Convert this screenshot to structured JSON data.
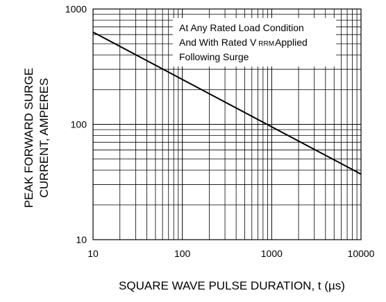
{
  "chart_data": {
    "type": "line",
    "title": "",
    "xlabel": "SQUARE WAVE PULSE DURATION, t (µs)",
    "ylabel": [
      "PEAK FORWARD SURGE",
      "CURRENT, AMPERES"
    ],
    "xscale": "log",
    "yscale": "log",
    "xlim": [
      10,
      10000
    ],
    "ylim": [
      10,
      1000
    ],
    "xticks": [
      "10",
      "100",
      "1000",
      "10000"
    ],
    "yticks": [
      "10",
      "100",
      "1000"
    ],
    "grid": true,
    "series": [
      {
        "x": [
          10,
          10000
        ],
        "y": [
          630,
          37
        ]
      }
    ],
    "annotation": {
      "line1": "At Any Rated Load Condition",
      "line2_prefix": "And With Rated V",
      "line2_sub": "RRM",
      "line2_suffix": "Applied",
      "line3": "Following Surge"
    }
  }
}
